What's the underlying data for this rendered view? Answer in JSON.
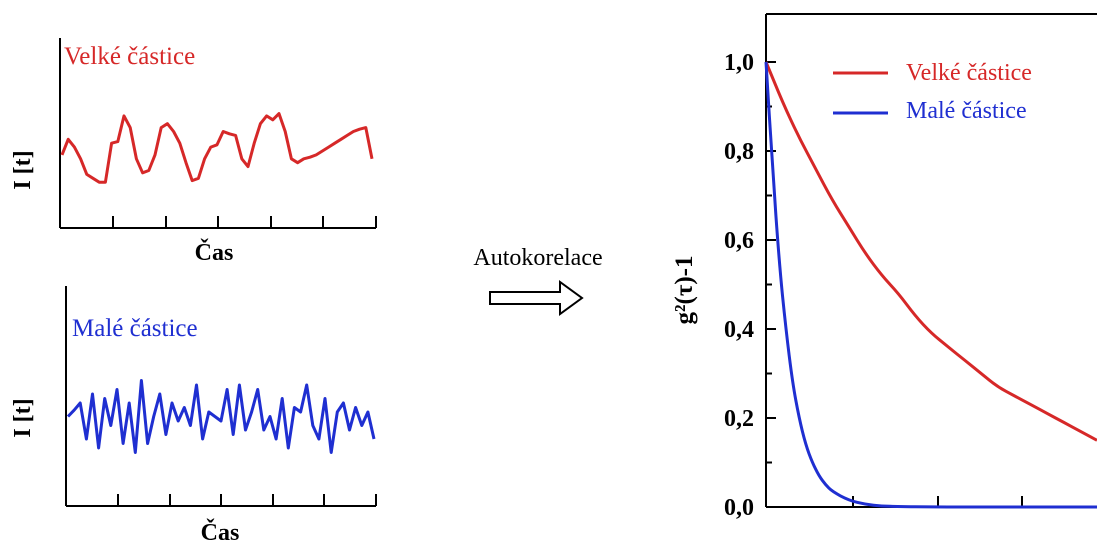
{
  "colors": {
    "large": "#d62828",
    "small": "#1f2fd1",
    "axis": "#000000"
  },
  "panels": {
    "top": {
      "label": "Velké částice",
      "ylabel": "I [t]",
      "xlabel": "Čas"
    },
    "bottom": {
      "label": "Malé částice",
      "ylabel": "I [t]",
      "xlabel": "Čas"
    }
  },
  "arrow": {
    "label": "Autokorelace",
    "icon": "hollow-right-arrow-icon"
  },
  "chart_data": [
    {
      "type": "line",
      "series": [
        {
          "name": "Velké částice",
          "x": [
            0.0,
            0.02,
            0.04,
            0.06,
            0.08,
            0.1,
            0.12,
            0.14,
            0.16,
            0.18,
            0.2,
            0.22,
            0.24,
            0.26,
            0.28,
            0.3,
            0.32,
            0.34,
            0.36,
            0.38,
            0.4,
            0.42,
            0.44,
            0.46,
            0.48,
            0.5,
            0.52,
            0.54,
            0.56,
            0.58,
            0.6,
            0.62,
            0.64,
            0.66,
            0.68,
            0.7,
            0.72,
            0.74,
            0.76,
            0.78,
            0.8,
            0.82,
            0.84,
            0.86,
            0.88,
            0.9,
            0.92,
            0.94,
            0.96,
            0.98,
            1.0
          ],
          "values": [
            0.45,
            0.65,
            0.55,
            0.4,
            0.2,
            0.15,
            0.1,
            0.1,
            0.6,
            0.62,
            0.95,
            0.8,
            0.4,
            0.22,
            0.25,
            0.45,
            0.8,
            0.85,
            0.75,
            0.6,
            0.35,
            0.12,
            0.15,
            0.4,
            0.55,
            0.58,
            0.75,
            0.72,
            0.7,
            0.4,
            0.3,
            0.6,
            0.85,
            0.95,
            0.9,
            0.98,
            0.75,
            0.4,
            0.35,
            0.4,
            0.42,
            0.45,
            0.5,
            0.55,
            0.6,
            0.65,
            0.7,
            0.75,
            0.78,
            0.8,
            0.4
          ]
        }
      ]
    },
    {
      "type": "line",
      "series": [
        {
          "name": "Malé částice",
          "x": [
            0.0,
            0.02,
            0.04,
            0.06,
            0.08,
            0.1,
            0.12,
            0.14,
            0.16,
            0.18,
            0.2,
            0.22,
            0.24,
            0.26,
            0.28,
            0.3,
            0.32,
            0.34,
            0.36,
            0.38,
            0.4,
            0.42,
            0.44,
            0.46,
            0.48,
            0.5,
            0.52,
            0.54,
            0.56,
            0.58,
            0.6,
            0.62,
            0.64,
            0.66,
            0.68,
            0.7,
            0.72,
            0.74,
            0.76,
            0.78,
            0.8,
            0.82,
            0.84,
            0.86,
            0.88,
            0.9,
            0.92,
            0.94,
            0.96,
            0.98,
            1.0
          ],
          "values": [
            0.55,
            0.62,
            0.7,
            0.3,
            0.8,
            0.2,
            0.75,
            0.45,
            0.85,
            0.25,
            0.7,
            0.15,
            0.95,
            0.25,
            0.55,
            0.8,
            0.35,
            0.7,
            0.5,
            0.65,
            0.45,
            0.9,
            0.3,
            0.6,
            0.55,
            0.5,
            0.85,
            0.35,
            0.9,
            0.4,
            0.6,
            0.85,
            0.4,
            0.55,
            0.3,
            0.75,
            0.2,
            0.65,
            0.6,
            0.9,
            0.45,
            0.3,
            0.75,
            0.15,
            0.6,
            0.7,
            0.4,
            0.65,
            0.45,
            0.6,
            0.3
          ]
        }
      ]
    },
    {
      "type": "line",
      "ylabel": "g²(τ)-1",
      "ylim": [
        0,
        1.0
      ],
      "yticks": [
        "0,0",
        "0,2",
        "0,4",
        "0,6",
        "0,8",
        "1,0"
      ],
      "xlim": [
        0,
        1
      ],
      "legend": "top-right",
      "series": [
        {
          "name": "Velké částice",
          "x": [
            0.0,
            0.05,
            0.1,
            0.15,
            0.2,
            0.25,
            0.3,
            0.35,
            0.4,
            0.45,
            0.5,
            0.55,
            0.6,
            0.65,
            0.7,
            0.75,
            0.8,
            0.85,
            0.9,
            0.95,
            1.0
          ],
          "values": [
            1.0,
            0.91,
            0.83,
            0.76,
            0.69,
            0.63,
            0.57,
            0.52,
            0.48,
            0.43,
            0.39,
            0.36,
            0.33,
            0.3,
            0.27,
            0.25,
            0.23,
            0.21,
            0.19,
            0.17,
            0.15
          ]
        },
        {
          "name": "Malé částice",
          "x": [
            0.0,
            0.02,
            0.04,
            0.06,
            0.08,
            0.1,
            0.12,
            0.14,
            0.16,
            0.18,
            0.2,
            0.25,
            0.3,
            0.35,
            0.4,
            0.5,
            0.6,
            0.7,
            0.8,
            0.9,
            1.0
          ],
          "values": [
            1.0,
            0.76,
            0.55,
            0.4,
            0.28,
            0.2,
            0.14,
            0.1,
            0.07,
            0.05,
            0.035,
            0.015,
            0.006,
            0.002,
            0.001,
            0.0,
            0.0,
            0.0,
            0.0,
            0.0,
            0.0
          ]
        }
      ]
    }
  ]
}
